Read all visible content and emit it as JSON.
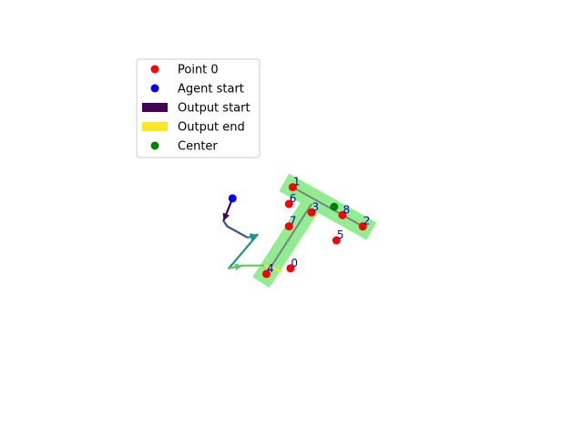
{
  "chart_data": {
    "type": "scatter",
    "title": "",
    "xlabel": "",
    "ylabel": "",
    "grid": false,
    "axes_visible": false,
    "xlim": [
      -6,
      6
    ],
    "ylim": [
      -6,
      6
    ],
    "legend": {
      "placement": "upper-left",
      "entries": [
        {
          "label": "Point 0",
          "kind": "marker",
          "color": "#ff0000"
        },
        {
          "label": "Agent start",
          "kind": "marker",
          "color": "#0000ff"
        },
        {
          "label": "Output start",
          "kind": "patch",
          "color": "#440154"
        },
        {
          "label": "Output end",
          "kind": "patch",
          "color": "#fde725"
        },
        {
          "label": "Center",
          "kind": "marker",
          "color": "#008000"
        }
      ]
    },
    "points": [
      {
        "label": "0",
        "x": -0.22,
        "y": -1.7
      },
      {
        "label": "1",
        "x": -0.16,
        "y": 1.2
      },
      {
        "label": "2",
        "x": 1.7,
        "y": -0.2
      },
      {
        "label": "3",
        "x": 0.34,
        "y": 0.3
      },
      {
        "label": "4",
        "x": -0.86,
        "y": -1.9
      },
      {
        "label": "5",
        "x": 1.0,
        "y": -0.7
      },
      {
        "label": "6",
        "x": -0.26,
        "y": 0.6
      },
      {
        "label": "7",
        "x": -0.26,
        "y": -0.2
      },
      {
        "label": "8",
        "x": 1.16,
        "y": 0.2
      }
    ],
    "agent_start": {
      "x": -1.76,
      "y": 0.8
    },
    "center": {
      "x": 0.94,
      "y": 0.5
    },
    "skeleton": [
      [
        -0.16,
        1.2
      ],
      [
        0.34,
        0.6
      ],
      [
        1.7,
        -0.2
      ],
      [
        -0.86,
        -1.9
      ]
    ],
    "region_color": "#90ee90",
    "skeleton_color": "#808080",
    "agent_path": [
      [
        -1.76,
        0.8
      ],
      [
        -2.0,
        0.0
      ],
      [
        -1.9,
        -0.2
      ],
      [
        -1.36,
        -0.6
      ],
      [
        -1.1,
        -0.5
      ],
      [
        -1.86,
        -1.7
      ],
      [
        -1.5,
        -1.6
      ],
      [
        -0.9,
        -1.6
      ],
      [
        -0.46,
        -1.8
      ]
    ],
    "agent_path_colormap": [
      "#440154",
      "#3b528b",
      "#21918c",
      "#5ec962",
      "#fde725"
    ]
  }
}
